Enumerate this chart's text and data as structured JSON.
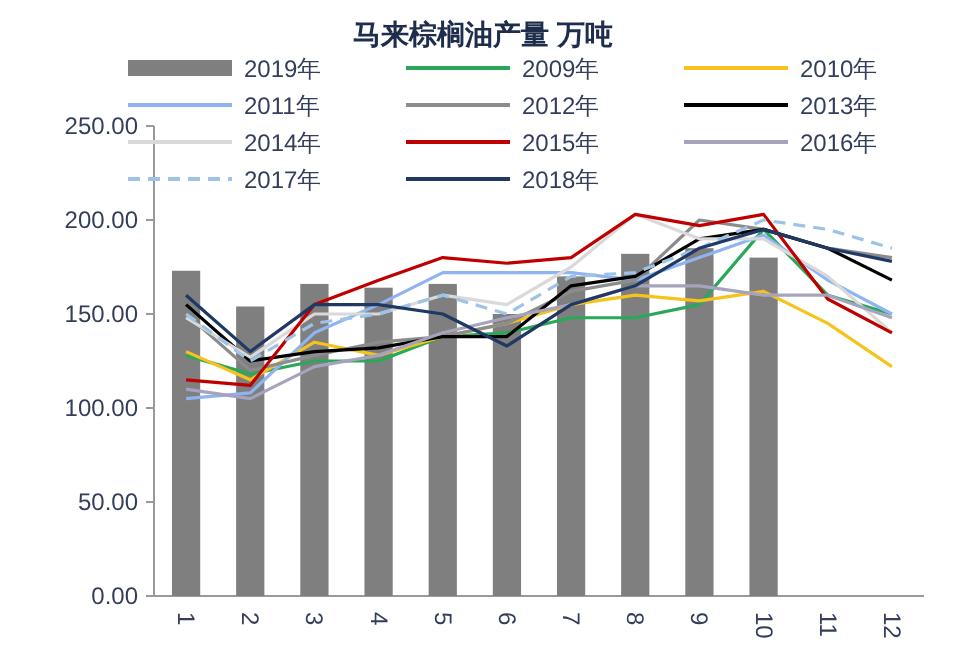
{
  "chart_data": {
    "type": "line",
    "title": "马来棕榈油产量 万吨",
    "categories": [
      "1",
      "2",
      "3",
      "4",
      "5",
      "6",
      "7",
      "8",
      "9",
      "10",
      "11",
      "12"
    ],
    "ylim": [
      0,
      250
    ],
    "yticks": [
      {
        "value": 0,
        "label": "0.00"
      },
      {
        "value": 50,
        "label": "50.00"
      },
      {
        "value": 100,
        "label": "100.00"
      },
      {
        "value": 150,
        "label": "150.00"
      },
      {
        "value": 200,
        "label": "200.00"
      },
      {
        "value": 250,
        "label": "250.00"
      }
    ],
    "grid": false,
    "legend": "top",
    "marker": "none",
    "series": [
      {
        "name": "2019年",
        "type": "bar",
        "color": "#7f7f7f",
        "values": [
          173,
          154,
          166,
          164,
          166,
          150,
          170,
          182,
          185,
          180,
          null,
          null
        ]
      },
      {
        "name": "2009年",
        "color": "#2aa85a",
        "values": [
          128,
          118,
          125,
          125,
          138,
          140,
          148,
          148,
          155,
          195,
          160,
          150
        ]
      },
      {
        "name": "2010年",
        "color": "#f5c31c",
        "values": [
          130,
          115,
          135,
          128,
          138,
          145,
          155,
          160,
          157,
          162,
          145,
          122
        ]
      },
      {
        "name": "2011年",
        "color": "#8fb4f0",
        "values": [
          105,
          108,
          140,
          155,
          172,
          172,
          172,
          168,
          180,
          192,
          168,
          150
        ]
      },
      {
        "name": "2012年",
        "color": "#8c8c8c",
        "values": [
          150,
          120,
          128,
          135,
          138,
          145,
          162,
          168,
          200,
          195,
          185,
          180
        ]
      },
      {
        "name": "2013年",
        "color": "#000000",
        "values": [
          155,
          125,
          130,
          132,
          138,
          138,
          165,
          170,
          190,
          195,
          185,
          168
        ]
      },
      {
        "name": "2014年",
        "color": "#d9d9d9",
        "values": [
          148,
          127,
          150,
          150,
          160,
          155,
          175,
          203,
          190,
          190,
          170,
          140
        ]
      },
      {
        "name": "2015年",
        "color": "#c00000",
        "values": [
          115,
          112,
          155,
          168,
          180,
          177,
          180,
          203,
          197,
          203,
          158,
          140
        ]
      },
      {
        "name": "2016年",
        "color": "#a6a3bd",
        "values": [
          110,
          105,
          122,
          128,
          140,
          148,
          155,
          165,
          165,
          160,
          160,
          148
        ]
      },
      {
        "name": "2017年",
        "color": "#9dc3e6",
        "line_style": "dashed",
        "values": [
          150,
          125,
          145,
          150,
          160,
          150,
          170,
          172,
          185,
          200,
          195,
          185
        ]
      },
      {
        "name": "2018年",
        "color": "#1f3864",
        "values": [
          160,
          130,
          155,
          155,
          150,
          133,
          155,
          165,
          185,
          195,
          185,
          178
        ]
      }
    ]
  }
}
